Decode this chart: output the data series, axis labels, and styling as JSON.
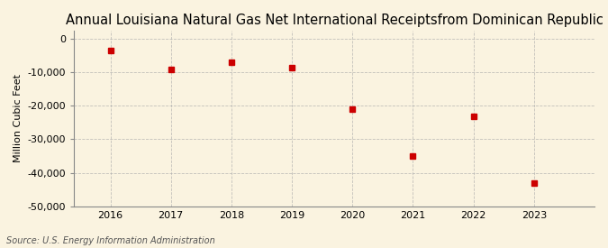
{
  "title": "Annual Louisiana Natural Gas Net International Receiptsfrom Dominican Republic",
  "ylabel": "Million Cubic Feet",
  "source": "Source: U.S. Energy Information Administration",
  "years": [
    2016,
    2017,
    2018,
    2019,
    2020,
    2021,
    2022,
    2023
  ],
  "values": [
    -3500,
    -9000,
    -7000,
    -8500,
    -21000,
    -35000,
    -23000,
    -43000
  ],
  "ylim": [
    -50000,
    2500
  ],
  "yticks": [
    0,
    -10000,
    -20000,
    -30000,
    -40000,
    -50000
  ],
  "marker_color": "#CC0000",
  "marker_size": 5,
  "background_color": "#FAF3E0",
  "grid_color": "#AAAAAA",
  "spine_color": "#888888",
  "title_fontsize": 10.5,
  "ylabel_fontsize": 8,
  "tick_fontsize": 8,
  "source_fontsize": 7,
  "xlim": [
    2015.4,
    2024.0
  ]
}
